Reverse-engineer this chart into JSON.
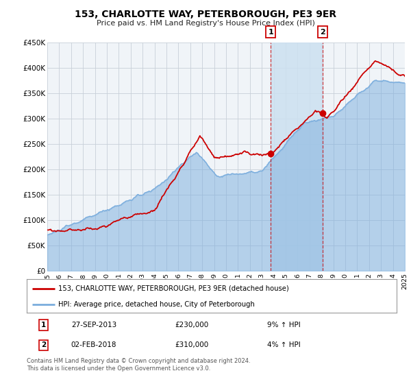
{
  "title": "153, CHARLOTTE WAY, PETERBOROUGH, PE3 9ER",
  "subtitle": "Price paid vs. HM Land Registry's House Price Index (HPI)",
  "legend_line1": "153, CHARLOTTE WAY, PETERBOROUGH, PE3 9ER (detached house)",
  "legend_line2": "HPI: Average price, detached house, City of Peterborough",
  "annotation1_date": "27-SEP-2013",
  "annotation1_price": "£230,000",
  "annotation1_hpi": "9% ↑ HPI",
  "annotation2_date": "02-FEB-2018",
  "annotation2_price": "£310,000",
  "annotation2_hpi": "4% ↑ HPI",
  "footnote1": "Contains HM Land Registry data © Crown copyright and database right 2024.",
  "footnote2": "This data is licensed under the Open Government Licence v3.0.",
  "red_color": "#cc0000",
  "blue_color": "#7aaddd",
  "fill_color": "#cce0f0",
  "chart_bg": "#f0f4f8",
  "grid_color": "#c8d0d8",
  "ylim_max": 450000,
  "yticks": [
    0,
    50000,
    100000,
    150000,
    200000,
    250000,
    300000,
    350000,
    400000,
    450000
  ],
  "xlim": [
    1995,
    2025
  ],
  "marker1_x": 2013.75,
  "marker1_y": 230000,
  "marker2_x": 2018.08,
  "marker2_y": 310000,
  "vline1_x": 2013.75,
  "vline2_x": 2018.08,
  "hpi_seed": 10,
  "red_seed": 99
}
